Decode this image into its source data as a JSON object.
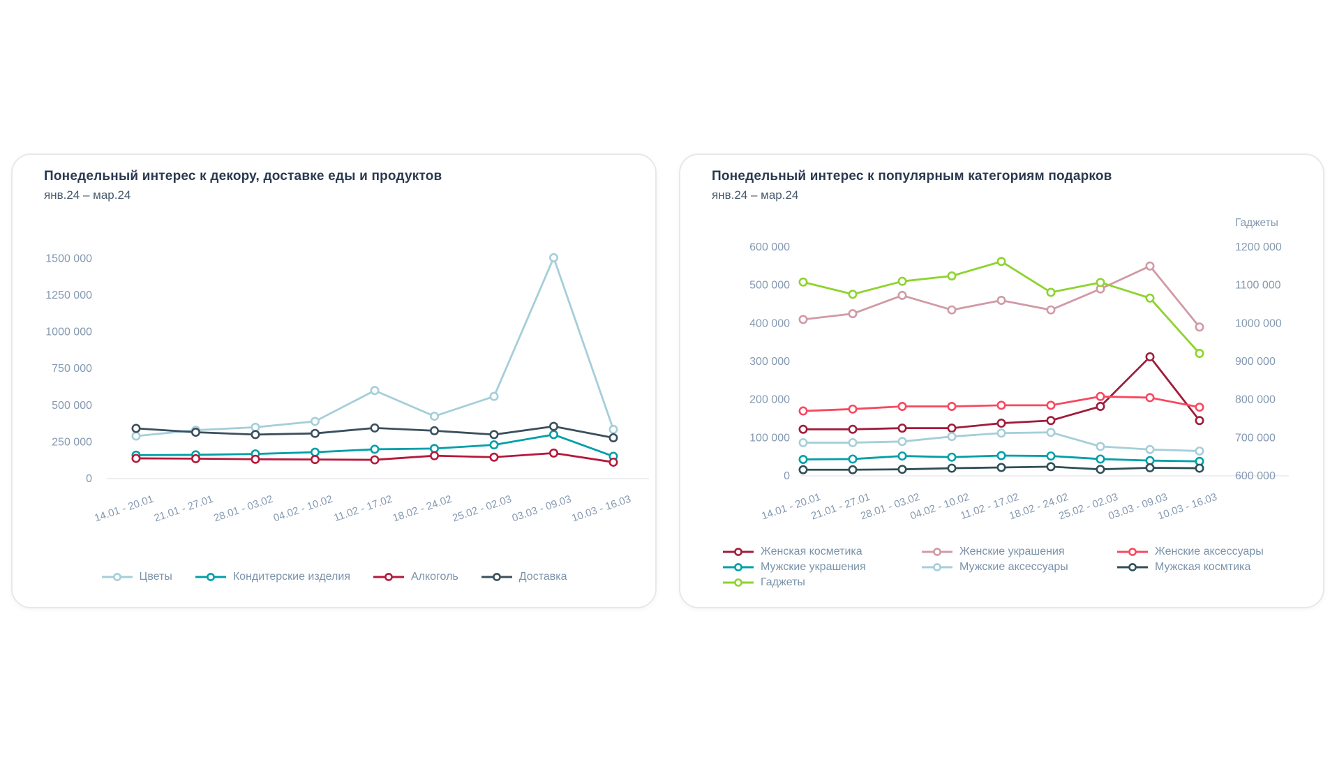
{
  "chart_data": [
    {
      "type": "line",
      "title": "Понедельный интерес к декору, доставке еды и продуктов",
      "subtitle": "янв.24 – мар.24",
      "grid": false,
      "legend_position": "bottom-center",
      "categories": [
        "14.01 - 20.01",
        "21.01 - 27.01",
        "28.01 - 03.02",
        "04.02 - 10.02",
        "11.02 - 17.02",
        "18.02 - 24.02",
        "25.02 - 02.03",
        "03.03 - 09.03",
        "10.03 - 16.03"
      ],
      "y_axis": {
        "min": 0,
        "max": 1600000,
        "ticks": [
          {
            "value": 0,
            "label": "0"
          },
          {
            "value": 250000,
            "label": "250 000"
          },
          {
            "value": 500000,
            "label": "500 000"
          },
          {
            "value": 750000,
            "label": "750 000"
          },
          {
            "value": 1000000,
            "label": "1000 000"
          },
          {
            "value": 1250000,
            "label": "1250 000"
          },
          {
            "value": 1500000,
            "label": "1500 000"
          }
        ]
      },
      "series": [
        {
          "id": "flowers",
          "name": "Цветы",
          "color": "#a5ced9",
          "values": [
            290000,
            330000,
            350000,
            390000,
            600000,
            425000,
            560000,
            1505000,
            335000
          ]
        },
        {
          "id": "confectionery",
          "name": "Кондитерские изделия",
          "color": "#009fa8",
          "values": [
            160000,
            162000,
            168000,
            180000,
            200000,
            205000,
            230000,
            300000,
            152000
          ]
        },
        {
          "id": "alcohol",
          "name": "Алкоголь",
          "color": "#b5193b",
          "values": [
            138000,
            136000,
            132000,
            130000,
            128000,
            156000,
            146000,
            174000,
            112000
          ]
        },
        {
          "id": "delivery",
          "name": "Доставка",
          "color": "#3b4f5d",
          "values": [
            342000,
            316000,
            300000,
            308000,
            345000,
            326000,
            300000,
            356000,
            278000
          ]
        }
      ]
    },
    {
      "type": "line",
      "title": "Понедельный интерес к популярным категориям подарков",
      "subtitle": "янв.24 – мар.24",
      "grid": false,
      "legend_position": "bottom-left",
      "categories": [
        "14.01 - 20.01",
        "21.01 - 27.01",
        "28.01 - 03.02",
        "04.02 - 10.02",
        "11.02 - 17.02",
        "18.02 - 24.02",
        "25.02 - 02.03",
        "03.03 - 09.03",
        "10.03 - 16.03"
      ],
      "y_axis": {
        "min": 0,
        "max": 620000,
        "ticks": [
          {
            "value": 0,
            "label": "0"
          },
          {
            "value": 100000,
            "label": "100 000"
          },
          {
            "value": 200000,
            "label": "200 000"
          },
          {
            "value": 300000,
            "label": "300 000"
          },
          {
            "value": 400000,
            "label": "400 000"
          },
          {
            "value": 500000,
            "label": "500 000"
          },
          {
            "value": 600000,
            "label": "600 000"
          }
        ]
      },
      "y_axis_right": {
        "title": "Гаджеты",
        "min": 600000,
        "max": 1220000,
        "ticks": [
          {
            "value": 600000,
            "label": "600 000"
          },
          {
            "value": 700000,
            "label": "700 000"
          },
          {
            "value": 800000,
            "label": "800 000"
          },
          {
            "value": 900000,
            "label": "900 000"
          },
          {
            "value": 1000000,
            "label": "1000 000"
          },
          {
            "value": 1100000,
            "label": "1100 000"
          },
          {
            "value": 1200000,
            "label": "1200 000"
          }
        ]
      },
      "series": [
        {
          "id": "female-cosmetics",
          "name": "Женская косметика",
          "color": "#a01c3b",
          "axis": "left",
          "values": [
            122000,
            122000,
            125000,
            125000,
            138000,
            145000,
            182000,
            312000,
            145000
          ]
        },
        {
          "id": "female-jewelry",
          "name": "Женские украшения",
          "color": "#d09aa6",
          "axis": "left",
          "values": [
            410000,
            425000,
            473000,
            435000,
            460000,
            435000,
            490000,
            550000,
            390000
          ]
        },
        {
          "id": "female-accessories",
          "name": "Женские аксессуары",
          "color": "#f8485f",
          "axis": "left",
          "values": [
            170000,
            175000,
            182000,
            182000,
            185000,
            185000,
            208000,
            205000,
            180000
          ]
        },
        {
          "id": "male-jewelry",
          "name": "Мужские украшения",
          "color": "#009fa8",
          "axis": "left",
          "values": [
            43000,
            44000,
            52000,
            49000,
            53000,
            52000,
            44000,
            40000,
            38000
          ]
        },
        {
          "id": "male-accessories",
          "name": "Мужские аксессуары",
          "color": "#a5ced9",
          "axis": "left",
          "values": [
            87000,
            87000,
            90000,
            103000,
            112000,
            114000,
            77000,
            69000,
            65000
          ]
        },
        {
          "id": "male-cosmetics",
          "name": "Мужская космтика",
          "color": "#2f4f58",
          "axis": "left",
          "values": [
            16000,
            16000,
            17000,
            20000,
            22000,
            24000,
            17000,
            21000,
            20000
          ]
        },
        {
          "id": "gadgets",
          "name": "Гаджеты",
          "color": "#8ed32f",
          "axis": "right",
          "values": [
            1108000,
            1076000,
            1110000,
            1124000,
            1162000,
            1081000,
            1107000,
            1066000,
            921000
          ]
        }
      ]
    }
  ]
}
